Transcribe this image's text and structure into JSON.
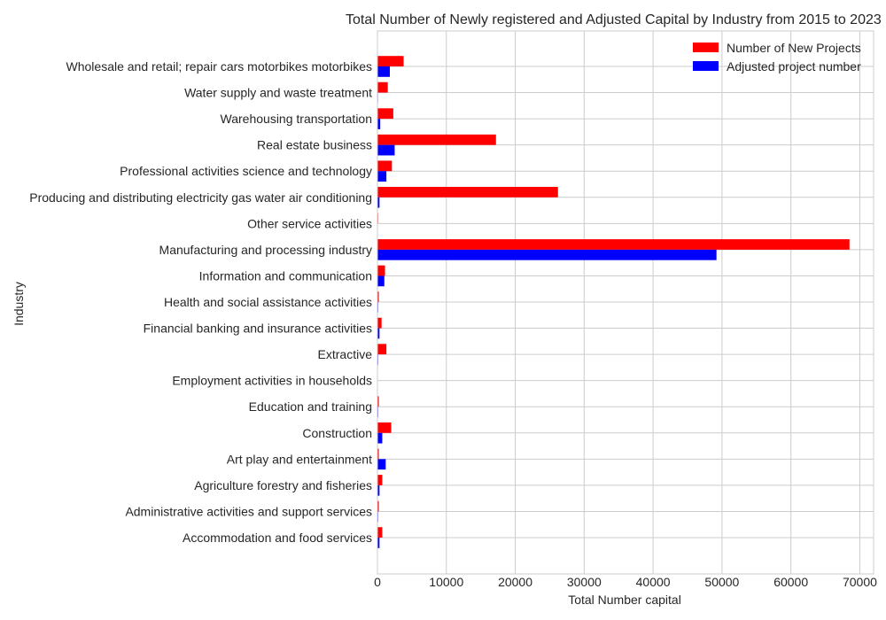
{
  "chart_data": {
    "type": "bar",
    "orientation": "horizontal",
    "title": "Total Number of Newly registered and Adjusted Capital by Industry from 2015 to 2023",
    "xlabel": "Total Number capital",
    "ylabel": "Industry",
    "xlim": [
      0,
      72000
    ],
    "xticks": [
      0,
      10000,
      20000,
      30000,
      40000,
      50000,
      60000,
      70000
    ],
    "grid": true,
    "legend_position": "top-right",
    "categories": [
      "Wholesale and retail; repair cars motorbikes motorbikes",
      "Water supply and waste treatment",
      "Warehousing transportation",
      "Real estate business",
      "Professional activities science and technology",
      "Producing and distributing electricity gas water air conditioning",
      "Other service activities",
      "Manufacturing and processing industry",
      "Information and communication",
      "Health and social assistance activities",
      "Financial banking and insurance activities",
      "Extractive",
      "Employment activities in households",
      "Education and training",
      "Construction",
      "Art play and entertainment",
      "Agriculture forestry and fisheries",
      "Administrative activities and support services",
      "Accommodation and food services"
    ],
    "series": [
      {
        "name": "Number of New Projects",
        "color": "#ff0000",
        "values": [
          3800,
          1500,
          2300,
          17200,
          2100,
          26200,
          100,
          68500,
          1100,
          200,
          600,
          1300,
          50,
          200,
          2000,
          200,
          700,
          200,
          700
        ]
      },
      {
        "name": "Adjusted project number",
        "color": "#0000ff",
        "values": [
          1800,
          80,
          400,
          2500,
          1300,
          300,
          30,
          49200,
          1000,
          100,
          300,
          100,
          20,
          100,
          700,
          1200,
          300,
          100,
          300
        ]
      }
    ]
  }
}
